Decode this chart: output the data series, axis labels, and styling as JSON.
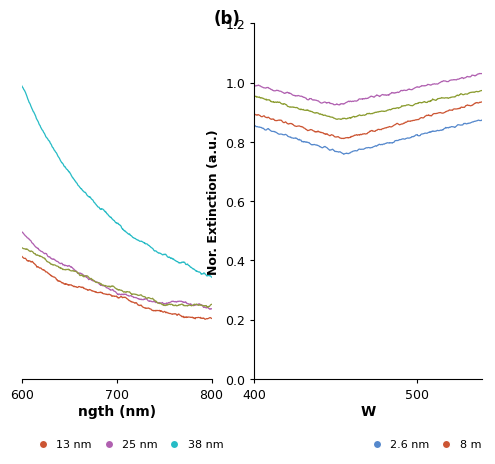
{
  "panel_b_label": "(b)",
  "ylabel_b": "Nor. Extinction (a.u.)",
  "xlabel_b": "W",
  "xlabel_a": "ngth (nm)",
  "xlim_a": [
    600,
    800
  ],
  "xlim_b": [
    400,
    540
  ],
  "ylim_a": [
    0.04,
    0.38
  ],
  "ylim_b": [
    0.0,
    1.2
  ],
  "yticks_b": [
    0.0,
    0.2,
    0.4,
    0.6,
    0.8,
    1.0,
    1.2
  ],
  "xticks_a": [
    600,
    700,
    800
  ],
  "xticks_b": [
    400,
    500
  ],
  "color_38nm_a": "#26bbc5",
  "color_25nm_a": "#b060b0",
  "color_olive_a": "#8f9a3e",
  "color_13nm_a": "#cc5533",
  "color_26nm_b": "#5588cc",
  "color_8nm_b": "#cc5533",
  "color_13nm_b": "#8a9b2e",
  "color_25nm_b": "#b060b0",
  "background": "#ffffff"
}
